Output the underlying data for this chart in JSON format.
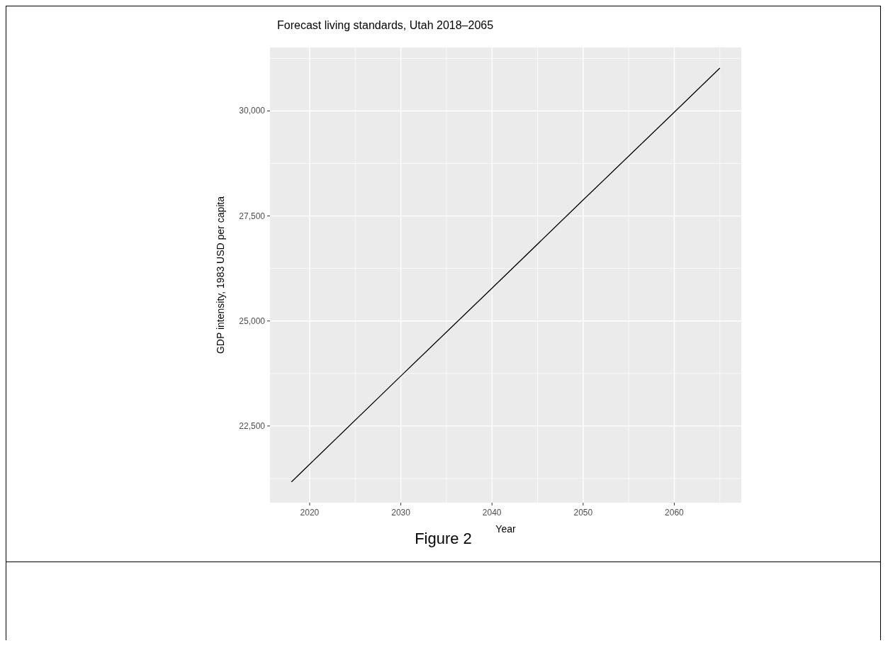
{
  "chart_data": {
    "type": "line",
    "title": "Forecast living standards, Utah 2018–2065",
    "xlabel": "Year",
    "ylabel": "GDP intensity, 1983 USD per capita",
    "annotations": [
      "Figure 2"
    ],
    "x": [
      2018,
      2030,
      2040,
      2050,
      2060,
      2065
    ],
    "series": [
      {
        "color": "#000000",
        "values": [
          21170,
          23690,
          25780,
          27880,
          29970,
          31020
        ]
      }
    ],
    "xlim": [
      2015.65,
      2067.35
    ],
    "xticks": [
      2020,
      {
        "value": 2025,
        "label": null
      },
      2030,
      {
        "value": 2035,
        "label": null
      },
      2040,
      {
        "value": 2045,
        "label": null
      },
      2050,
      {
        "value": 2055,
        "label": null
      },
      2060,
      {
        "value": 2065,
        "label": null
      }
    ],
    "ylim": [
      20675,
      31510
    ],
    "yticks": [
      {
        "value": 21250,
        "label": null
      },
      {
        "value": 22500,
        "label": "22,500"
      },
      {
        "value": 23750,
        "label": null
      },
      {
        "value": 25000,
        "label": "25,000"
      },
      {
        "value": 26250,
        "label": null
      },
      {
        "value": 27500,
        "label": "27,500"
      },
      {
        "value": 28750,
        "label": null
      },
      {
        "value": 30000,
        "label": "30,000"
      },
      {
        "value": 31250,
        "label": null
      }
    ],
    "grid": true,
    "marker": "none",
    "line_style": "solid"
  }
}
